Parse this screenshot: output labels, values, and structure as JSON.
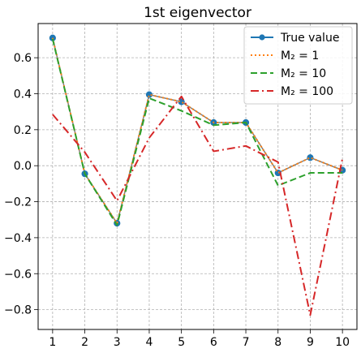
{
  "chart_data": {
    "type": "line",
    "title": "1st eigenvector",
    "xlabel": "",
    "ylabel": "",
    "x": [
      1,
      2,
      3,
      4,
      5,
      6,
      7,
      8,
      9,
      10
    ],
    "xlim": [
      0.55,
      10.45
    ],
    "ylim": [
      -0.91,
      0.79
    ],
    "xticks": [
      "1",
      "2",
      "3",
      "4",
      "5",
      "6",
      "7",
      "8",
      "9",
      "10"
    ],
    "yticks": [
      0.6,
      0.4,
      0.2,
      0.0,
      -0.2,
      -0.4,
      -0.6,
      -0.8
    ],
    "ytick_labels": [
      "0.6",
      "0.4",
      "0.2",
      "0.0",
      "−0.2",
      "−0.4",
      "−0.6",
      "−0.8"
    ],
    "grid": true,
    "legend_position": "top-right",
    "series": [
      {
        "name": "True value",
        "legend_label": "True value",
        "style": "solid-marker",
        "color": "#1f77b4",
        "values": [
          0.71,
          -0.045,
          -0.32,
          0.395,
          0.355,
          0.24,
          0.24,
          -0.04,
          0.045,
          -0.025
        ]
      },
      {
        "name": "M2 = 1",
        "legend_label": "M₂ = 1",
        "style": "dotted",
        "color": "#ff7f0e",
        "values": [
          0.71,
          -0.045,
          -0.32,
          0.395,
          0.355,
          0.24,
          0.24,
          -0.04,
          0.045,
          -0.025
        ]
      },
      {
        "name": "M2 = 10",
        "legend_label": "M₂ = 10",
        "style": "dashed",
        "color": "#2ca02c",
        "values": [
          0.705,
          -0.045,
          -0.33,
          0.375,
          0.305,
          0.225,
          0.24,
          -0.11,
          -0.04,
          -0.04
        ]
      },
      {
        "name": "M2 = 100",
        "legend_label": "M₂ = 100",
        "style": "dashdot",
        "color": "#d62728",
        "values": [
          0.285,
          0.075,
          -0.195,
          0.155,
          0.385,
          0.08,
          0.11,
          0.02,
          -0.83,
          0.04
        ]
      }
    ]
  }
}
